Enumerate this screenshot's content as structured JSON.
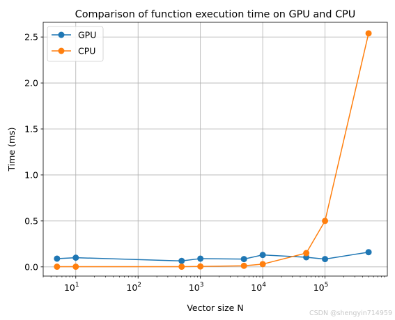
{
  "chart_data": {
    "type": "line",
    "title": "Comparison of function execution time on GPU and CPU",
    "xlabel": "Vector size N",
    "ylabel": "Time (ms)",
    "x_scale": "log",
    "xlim": [
      3,
      1000000
    ],
    "ylim": [
      -0.1,
      2.66
    ],
    "xticks": [
      {
        "value": 10,
        "base": "10",
        "exp": "1"
      },
      {
        "value": 100,
        "base": "10",
        "exp": "2"
      },
      {
        "value": 1000,
        "base": "10",
        "exp": "3"
      },
      {
        "value": 10000,
        "base": "10",
        "exp": "4"
      },
      {
        "value": 100000,
        "base": "10",
        "exp": "5"
      }
    ],
    "yticks": [
      "0.0",
      "0.5",
      "1.0",
      "1.5",
      "2.0",
      "2.5"
    ],
    "grid": true,
    "legend_position": "top-left",
    "series": [
      {
        "name": "GPU",
        "color": "#1f77b4",
        "x": [
          5,
          10,
          500,
          1000,
          5000,
          10000,
          50000,
          100000,
          500000
        ],
        "y": [
          0.09,
          0.1,
          0.065,
          0.09,
          0.085,
          0.13,
          0.105,
          0.085,
          0.16
        ]
      },
      {
        "name": "CPU",
        "color": "#ff7f0e",
        "x": [
          5,
          10,
          500,
          1000,
          5000,
          10000,
          50000,
          100000,
          500000
        ],
        "y": [
          0.002,
          0.002,
          0.002,
          0.005,
          0.012,
          0.03,
          0.15,
          0.5,
          2.54
        ]
      }
    ]
  },
  "watermark": "CSDN @shengyin714959"
}
